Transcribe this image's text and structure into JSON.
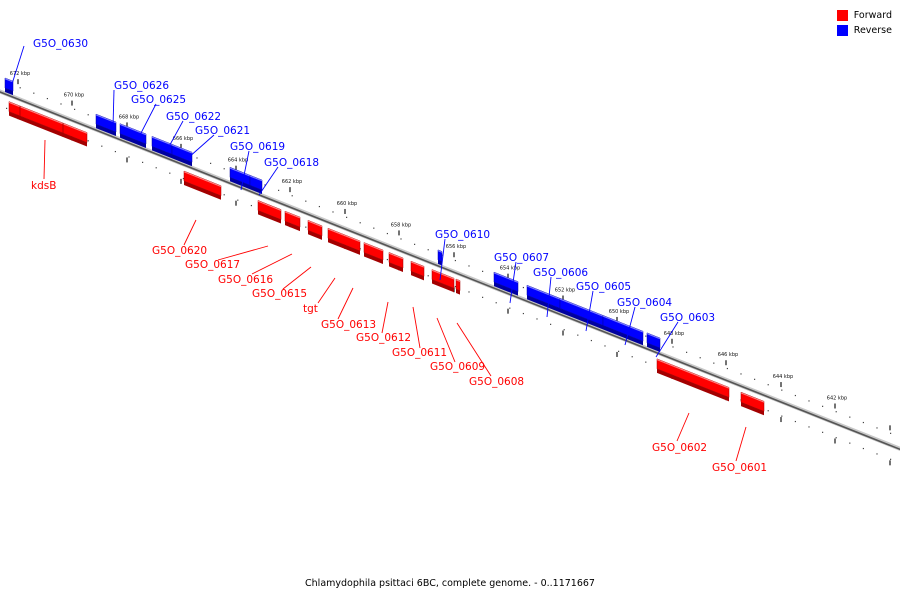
{
  "legend": {
    "forward_label": "Forward",
    "reverse_label": "Reverse",
    "forward_color": "#ff0000",
    "reverse_color": "#0000ff"
  },
  "footer_text": "Chlamydophila psittaci 6BC, complete genome. - 0..1171667",
  "axis": {
    "tick_labels": [
      "672 kbp",
      "670 kbp",
      "668 kbp",
      "666 kbp",
      "664 kbp",
      "662 kbp",
      "660 kbp",
      "658 kbp",
      "656 kbp",
      "654 kbp",
      "652 kbp",
      "650 kbp",
      "648 kbp",
      "646 kbp",
      "644 kbp",
      "642 kbp"
    ]
  },
  "genes": [
    {
      "label": "G5O_0630",
      "strand": "reverse"
    },
    {
      "label": "G5O_0626",
      "strand": "reverse"
    },
    {
      "label": "G5O_0625",
      "strand": "reverse"
    },
    {
      "label": "G5O_0622",
      "strand": "reverse"
    },
    {
      "label": "G5O_0621",
      "strand": "reverse"
    },
    {
      "label": "G5O_0619",
      "strand": "reverse"
    },
    {
      "label": "G5O_0618",
      "strand": "reverse"
    },
    {
      "label": "G5O_0610",
      "strand": "reverse"
    },
    {
      "label": "G5O_0607",
      "strand": "reverse"
    },
    {
      "label": "G5O_0606",
      "strand": "reverse"
    },
    {
      "label": "G5O_0605",
      "strand": "reverse"
    },
    {
      "label": "G5O_0604",
      "strand": "reverse"
    },
    {
      "label": "G5O_0603",
      "strand": "reverse"
    },
    {
      "label": "kdsB",
      "strand": "forward"
    },
    {
      "label": "G5O_0620",
      "strand": "forward"
    },
    {
      "label": "G5O_0617",
      "strand": "forward"
    },
    {
      "label": "G5O_0616",
      "strand": "forward"
    },
    {
      "label": "G5O_0615",
      "strand": "forward"
    },
    {
      "label": "tgt",
      "strand": "forward"
    },
    {
      "label": "G5O_0613",
      "strand": "forward"
    },
    {
      "label": "G5O_0612",
      "strand": "forward"
    },
    {
      "label": "G5O_0611",
      "strand": "forward"
    },
    {
      "label": "G5O_0609",
      "strand": "forward"
    },
    {
      "label": "G5O_0608",
      "strand": "forward"
    },
    {
      "label": "G5O_0602",
      "strand": "forward"
    },
    {
      "label": "G5O_0601",
      "strand": "forward"
    }
  ]
}
